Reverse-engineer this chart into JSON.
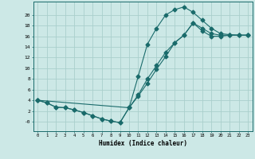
{
  "title": "",
  "xlabel": "Humidex (Indice chaleur)",
  "background_color": "#cce8e6",
  "grid_color": "#aacfcc",
  "line_color": "#1a6b6b",
  "xlim": [
    -0.5,
    23.5
  ],
  "ylim": [
    -1.8,
    22.5
  ],
  "xticks": [
    0,
    1,
    2,
    3,
    4,
    5,
    6,
    7,
    8,
    9,
    10,
    11,
    12,
    13,
    14,
    15,
    16,
    17,
    18,
    19,
    20,
    21,
    22,
    23
  ],
  "yticks": [
    0,
    2,
    4,
    6,
    8,
    10,
    12,
    14,
    16,
    18,
    20
  ],
  "ytick_labels": [
    "-0",
    "2",
    "4",
    "6",
    "8",
    "10",
    "12",
    "14",
    "16",
    "18",
    "20"
  ],
  "line1_x": [
    0,
    1,
    2,
    3,
    4,
    5,
    6,
    7,
    8,
    9,
    10,
    11,
    12,
    13,
    14,
    15,
    16,
    17,
    18,
    19,
    20,
    21,
    22,
    23
  ],
  "line1_y": [
    4,
    3.5,
    2.7,
    2.6,
    2.2,
    1.7,
    1.1,
    0.5,
    0.1,
    -0.2,
    2.6,
    8.5,
    14.5,
    17.5,
    20.0,
    21.0,
    21.5,
    20.5,
    19.0,
    17.5,
    16.5,
    16.3,
    16.2,
    16.2
  ],
  "line2_x": [
    0,
    1,
    2,
    3,
    4,
    5,
    6,
    7,
    8,
    9,
    10,
    11,
    12,
    13,
    14,
    15,
    16,
    17,
    18,
    19,
    20,
    21,
    22,
    23
  ],
  "line2_y": [
    4,
    3.5,
    2.7,
    2.6,
    2.2,
    1.7,
    1.1,
    0.5,
    0.1,
    -0.2,
    2.6,
    5.0,
    8.0,
    10.5,
    13.0,
    14.8,
    16.2,
    18.5,
    17.0,
    16.0,
    16.0,
    16.2,
    16.2,
    16.2
  ],
  "line3_x": [
    0,
    10,
    11,
    12,
    13,
    14,
    15,
    16,
    17,
    18,
    19,
    20,
    21,
    22,
    23
  ],
  "line3_y": [
    4,
    2.6,
    4.8,
    7.2,
    9.8,
    12.2,
    14.8,
    16.2,
    18.5,
    17.5,
    16.5,
    16.2,
    16.2,
    16.2,
    16.2
  ]
}
